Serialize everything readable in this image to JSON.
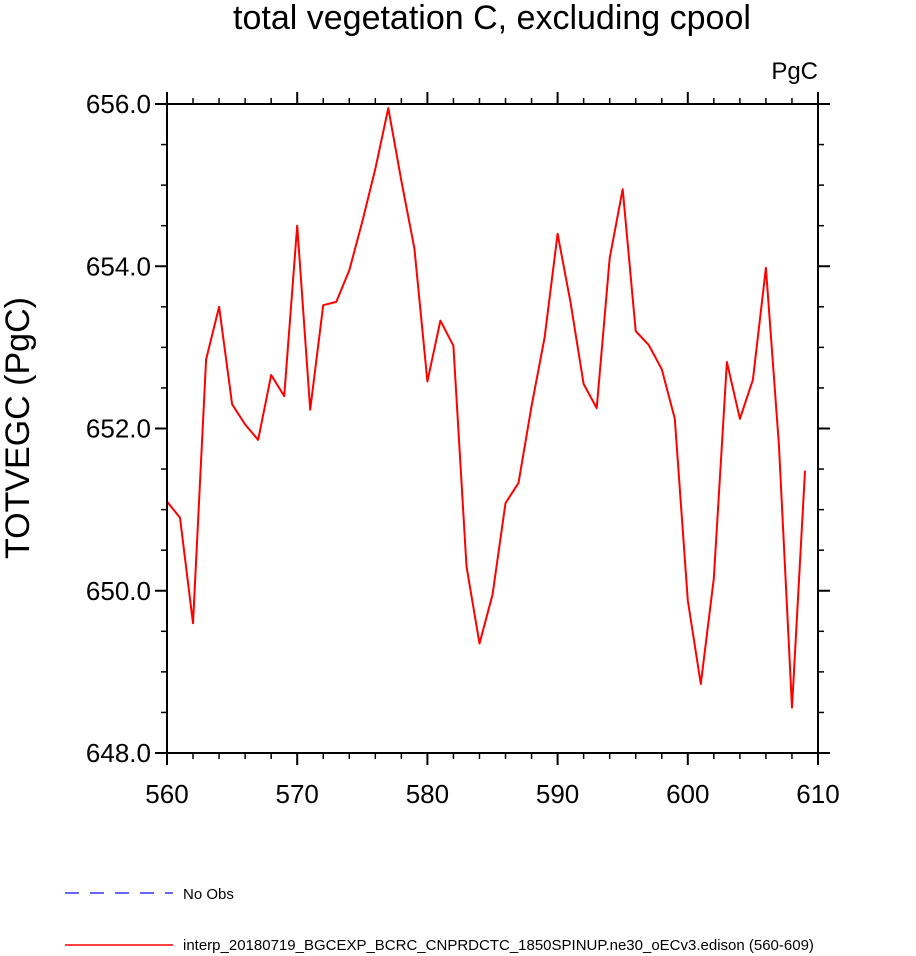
{
  "chart_data": {
    "type": "line",
    "title": "total vegetation C, excluding cpool",
    "units_label": "PgC",
    "xlabel": "",
    "ylabel": "TOTVEGC  (PgC)",
    "xlim": [
      560,
      610
    ],
    "ylim": [
      648.0,
      656.0
    ],
    "x_ticks": [
      {
        "value": 560,
        "label": "560"
      },
      {
        "value": 570,
        "label": "570"
      },
      {
        "value": 580,
        "label": "580"
      },
      {
        "value": 590,
        "label": "590"
      },
      {
        "value": 600,
        "label": "600"
      },
      {
        "value": 610,
        "label": "610"
      }
    ],
    "y_ticks": [
      {
        "value": 648,
        "label": "648.0"
      },
      {
        "value": 650,
        "label": "650.0"
      },
      {
        "value": 652,
        "label": "652.0"
      },
      {
        "value": 654,
        "label": "654.0"
      },
      {
        "value": 656,
        "label": "656.0"
      }
    ],
    "x_minor_step": 2,
    "y_minor_step": 0.5,
    "series": [
      {
        "name": "interp_20180719_BGCEXP_BCRC_CNPRDCTC_1850SPINUP.ne30_oECv3.edison (560-609)",
        "color": "#ff0000",
        "x": [
          560,
          561,
          562,
          563,
          564,
          565,
          566,
          567,
          568,
          569,
          570,
          571,
          572,
          573,
          574,
          575,
          576,
          577,
          578,
          579,
          580,
          581,
          582,
          583,
          584,
          585,
          586,
          587,
          588,
          589,
          590,
          591,
          592,
          593,
          594,
          595,
          596,
          597,
          598,
          599,
          600,
          601,
          602,
          603,
          604,
          605,
          606,
          607,
          608,
          609
        ],
        "values": [
          651.1,
          650.9,
          649.6,
          652.85,
          653.5,
          652.3,
          652.05,
          651.86,
          652.66,
          652.4,
          654.5,
          652.23,
          653.52,
          653.56,
          653.95,
          654.55,
          655.2,
          655.95,
          655.05,
          654.22,
          652.58,
          653.33,
          653.02,
          650.3,
          649.35,
          649.95,
          651.08,
          651.33,
          652.28,
          653.12,
          654.4,
          653.55,
          652.55,
          652.25,
          654.1,
          654.95,
          653.2,
          653.03,
          652.73,
          652.12,
          649.88,
          648.85,
          650.15,
          652.82,
          652.12,
          652.6,
          653.98,
          651.8,
          648.56,
          651.48
        ]
      }
    ],
    "legend": [
      {
        "label": "No Obs",
        "color": "#3333ff",
        "style": "dashed"
      },
      {
        "label": "interp_20180719_BGCEXP_BCRC_CNPRDCTC_1850SPINUP.ne30_oECv3.edison (560-609)",
        "color": "#ff0000",
        "style": "solid"
      }
    ]
  }
}
